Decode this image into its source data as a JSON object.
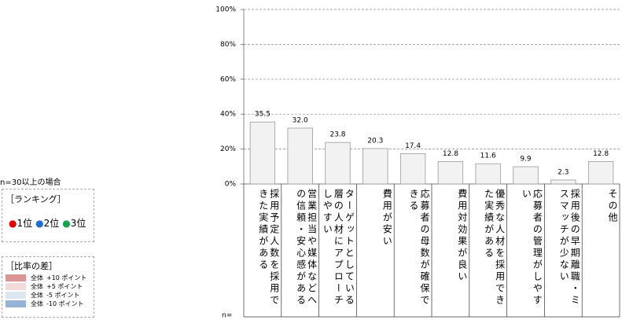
{
  "chart_data": {
    "type": "bar",
    "categories": [
      "採用予定人数を採用できた実績がある",
      "営業担当や媒体などへの信頼・安心感がある",
      "ターゲットとしている層の人材にアプローチしやすい",
      "費用が安い",
      "応募者の母数が確保できる",
      "費用対効果が良い",
      "優秀な人材を採用できた実績がある",
      "応募者の管理がしやすい",
      "採用後の早期離職・ミスマッチが少ない",
      "その他"
    ],
    "values": [
      35.5,
      32.0,
      23.8,
      20.3,
      17.4,
      12.8,
      11.6,
      9.9,
      2.3,
      12.8
    ],
    "value_labels": [
      "35.5",
      "32.0",
      "23.8",
      "20.3",
      "17.4",
      "12.8",
      "11.6",
      "9.9",
      "2.3",
      "12.8"
    ],
    "color": "#f2f2f2",
    "ylim": [
      0,
      100
    ],
    "yticks": [
      {
        "value": 0,
        "label": "0%"
      },
      {
        "value": 20,
        "label": "20%"
      },
      {
        "value": 40,
        "label": "40%"
      },
      {
        "value": 60,
        "label": "60%"
      },
      {
        "value": 80,
        "label": "80%"
      },
      {
        "value": 100,
        "label": "100%"
      }
    ],
    "grid": true,
    "n_label": "n="
  },
  "side_panel": {
    "note": "n=30以上の場合",
    "ranking": {
      "title": "［ランキング］",
      "items": [
        {
          "mark": "●",
          "label": "1位",
          "color": "#e00000"
        },
        {
          "mark": "●",
          "label": "2位",
          "color": "#1f6fd0"
        },
        {
          "mark": "●",
          "label": "3位",
          "color": "#16a34a"
        }
      ]
    },
    "diff": {
      "title": "［比率の差］",
      "items": [
        {
          "base": "全体",
          "label": "+10 ポイント",
          "color": "#da9694"
        },
        {
          "base": "全体",
          "label": "+5 ポイント",
          "color": "#f2dcdb"
        },
        {
          "base": "全体",
          "label": "-5 ポイント",
          "color": "#dce6f1"
        },
        {
          "base": "全体",
          "label": "-10 ポイント",
          "color": "#95b3d7"
        }
      ]
    }
  }
}
